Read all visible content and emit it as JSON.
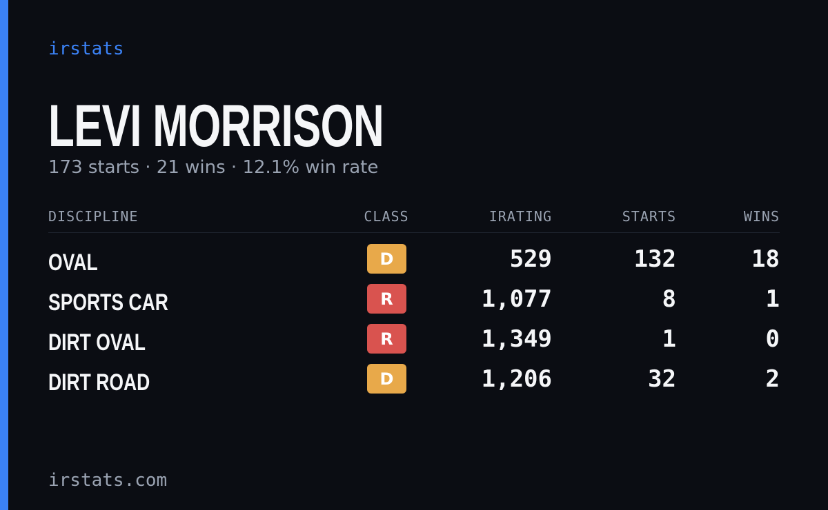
{
  "brand": "irstats",
  "driver": {
    "name": "LEVI MORRISON",
    "summary": "173 starts · 21 wins · 12.1% win rate"
  },
  "table": {
    "headers": [
      "DISCIPLINE",
      "CLASS",
      "IRATING",
      "STARTS",
      "WINS"
    ],
    "rows": [
      {
        "discipline": "OVAL",
        "class": "D",
        "class_color": "#e8a94a",
        "irating": "529",
        "starts": "132",
        "wins": "18"
      },
      {
        "discipline": "SPORTS CAR",
        "class": "R",
        "class_color": "#d9534f",
        "irating": "1,077",
        "starts": "8",
        "wins": "1"
      },
      {
        "discipline": "DIRT OVAL",
        "class": "R",
        "class_color": "#d9534f",
        "irating": "1,349",
        "starts": "1",
        "wins": "0"
      },
      {
        "discipline": "DIRT ROAD",
        "class": "D",
        "class_color": "#e8a94a",
        "irating": "1,206",
        "starts": "32",
        "wins": "2"
      }
    ]
  },
  "footer": "irstats.com"
}
